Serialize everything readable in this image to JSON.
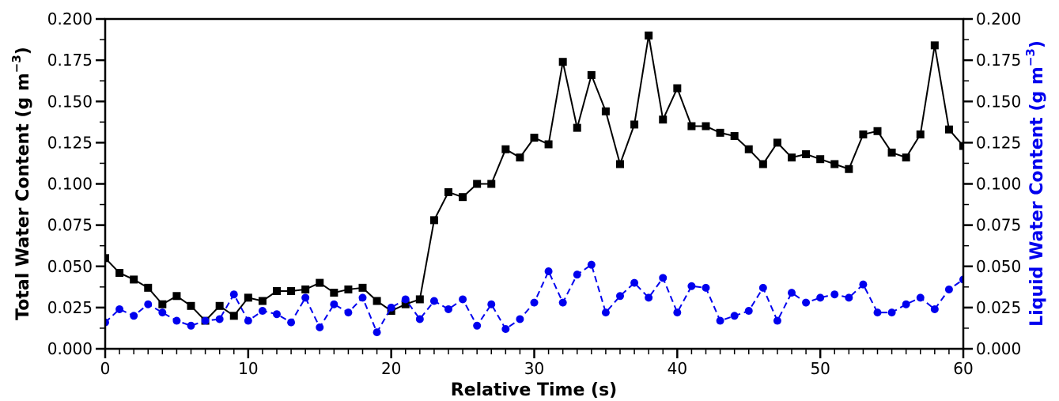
{
  "chart_data": {
    "type": "line",
    "xlabel": "Relative Time (s)",
    "ylabel_left": "Total Water Content (g m",
    "ylabel_right": "Liquid Water Content (g m",
    "ylabel_unit_exponent": "−3",
    "ylabel_unit_close": ")",
    "xlim": [
      0,
      60
    ],
    "ylim": [
      0.0,
      0.2
    ],
    "x_ticks": [
      0,
      10,
      20,
      30,
      40,
      50,
      60
    ],
    "y_ticks": [
      "0.000",
      "0.025",
      "0.050",
      "0.075",
      "0.100",
      "0.125",
      "0.150",
      "0.175",
      "0.200"
    ],
    "grid": false,
    "series": [
      {
        "axis": "left",
        "color": "#000000",
        "marker": "square",
        "line": "solid",
        "x": [
          0,
          1,
          2,
          3,
          4,
          5,
          6,
          7,
          8,
          9,
          10,
          11,
          12,
          13,
          14,
          15,
          16,
          17,
          18,
          19,
          20,
          21,
          22,
          23,
          24,
          25,
          26,
          27,
          28,
          29,
          30,
          31,
          32,
          33,
          34,
          35,
          36,
          37,
          38,
          39,
          40,
          41,
          42,
          43,
          44,
          45,
          46,
          47,
          48,
          49,
          50,
          51,
          52,
          53,
          54,
          55,
          56,
          57,
          58,
          59,
          60
        ],
        "values": [
          0.055,
          0.046,
          0.042,
          0.037,
          0.027,
          0.032,
          0.026,
          0.017,
          0.026,
          0.02,
          0.031,
          0.029,
          0.035,
          0.035,
          0.036,
          0.04,
          0.034,
          0.036,
          0.037,
          0.029,
          0.023,
          0.027,
          0.03,
          0.078,
          0.095,
          0.092,
          0.1,
          0.1,
          0.121,
          0.116,
          0.128,
          0.124,
          0.174,
          0.134,
          0.166,
          0.144,
          0.112,
          0.136,
          0.19,
          0.139,
          0.158,
          0.135,
          0.135,
          0.131,
          0.129,
          0.121,
          0.112,
          0.125,
          0.116,
          0.118,
          0.115,
          0.112,
          0.109,
          0.13,
          0.132,
          0.119,
          0.116,
          0.13,
          0.184,
          0.133,
          0.123
        ]
      },
      {
        "axis": "right",
        "color": "#0000ee",
        "marker": "circle",
        "line": "dashed",
        "x": [
          0,
          1,
          2,
          3,
          4,
          5,
          6,
          7,
          8,
          9,
          10,
          11,
          12,
          13,
          14,
          15,
          16,
          17,
          18,
          19,
          20,
          21,
          22,
          23,
          24,
          25,
          26,
          27,
          28,
          29,
          30,
          31,
          32,
          33,
          34,
          35,
          36,
          37,
          38,
          39,
          40,
          41,
          42,
          43,
          44,
          45,
          46,
          47,
          48,
          49,
          50,
          51,
          52,
          53,
          54,
          55,
          56,
          57,
          58,
          59,
          60
        ],
        "values": [
          0.016,
          0.024,
          0.02,
          0.027,
          0.022,
          0.017,
          0.014,
          0.017,
          0.018,
          0.033,
          0.017,
          0.023,
          0.021,
          0.016,
          0.031,
          0.013,
          0.027,
          0.022,
          0.031,
          0.01,
          0.025,
          0.03,
          0.018,
          0.029,
          0.024,
          0.03,
          0.014,
          0.027,
          0.012,
          0.018,
          0.028,
          0.047,
          0.028,
          0.045,
          0.051,
          0.022,
          0.032,
          0.04,
          0.031,
          0.043,
          0.022,
          0.038,
          0.037,
          0.017,
          0.02,
          0.023,
          0.037,
          0.017,
          0.034,
          0.028,
          0.031,
          0.033,
          0.031,
          0.039,
          0.022,
          0.022,
          0.027,
          0.031,
          0.024,
          0.036,
          0.042
        ]
      }
    ]
  }
}
